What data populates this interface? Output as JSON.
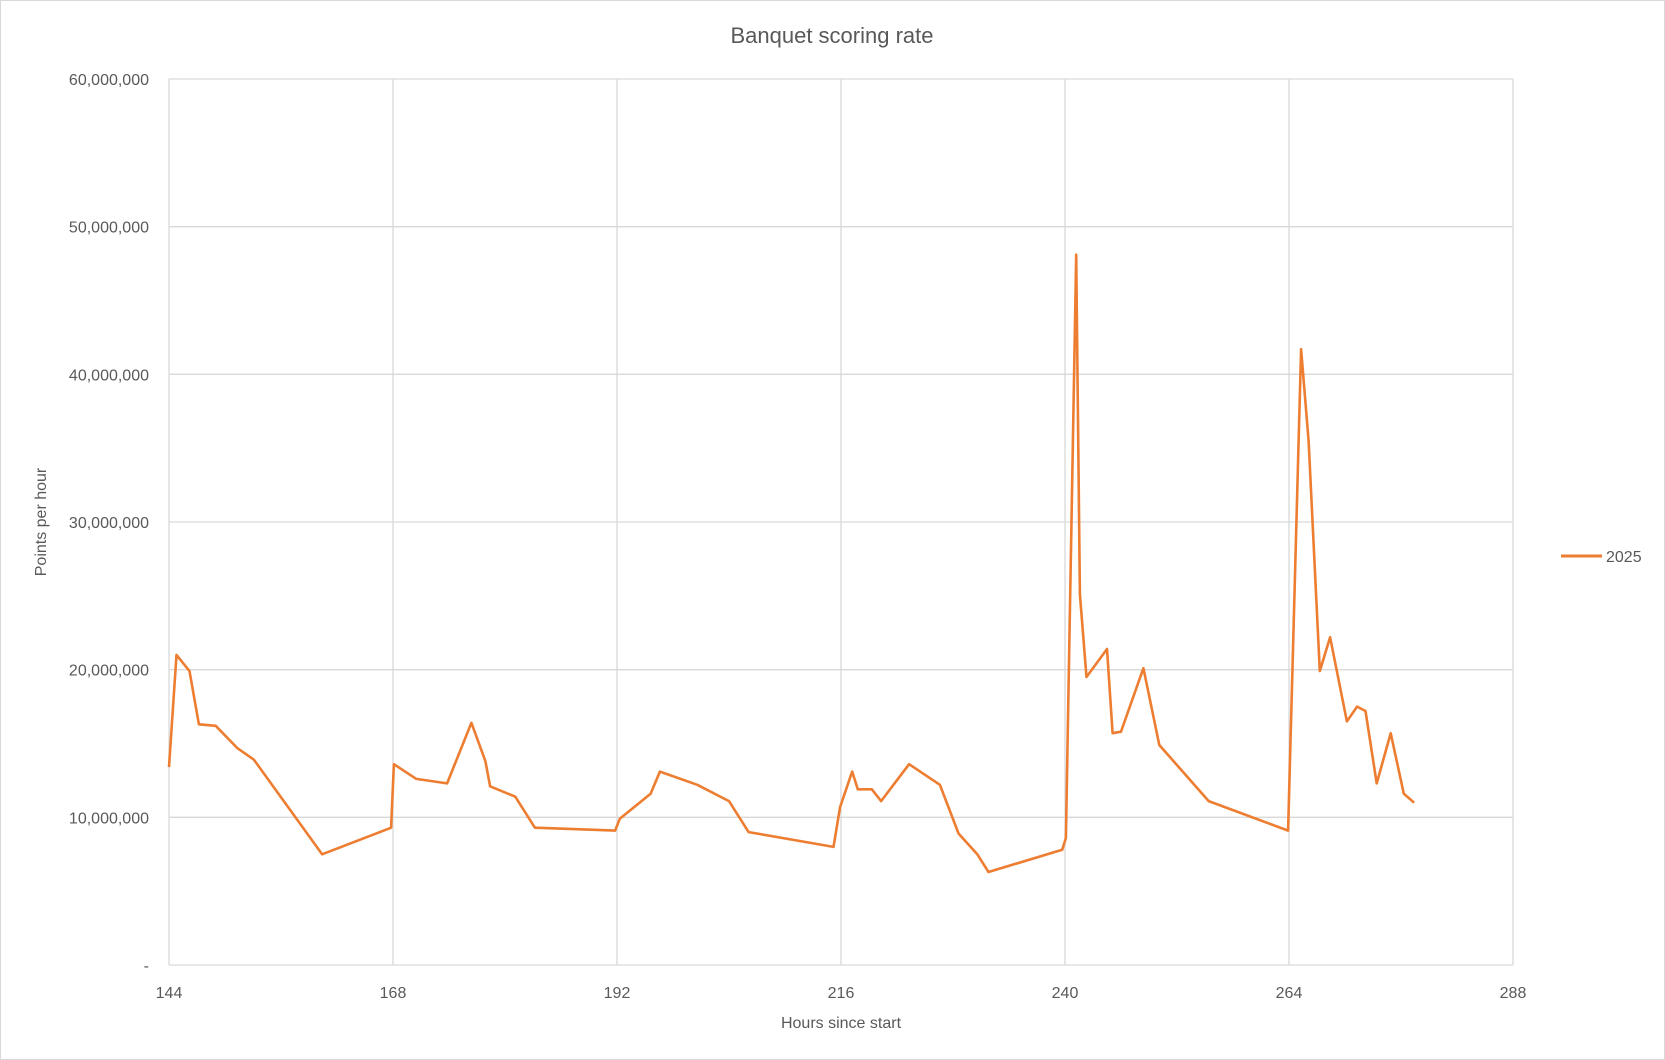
{
  "chart_data": {
    "type": "line",
    "title": "Banquet scoring rate",
    "xlabel": "Hours since start",
    "ylabel": "Points per hour",
    "xlim": [
      144,
      288
    ],
    "ylim": [
      0,
      60000000
    ],
    "x_ticks": [
      144,
      168,
      192,
      216,
      240,
      264,
      288
    ],
    "x_tick_labels": [
      "144",
      "168",
      "192",
      "216",
      "240",
      "264",
      "288"
    ],
    "y_ticks": [
      0,
      10000000,
      20000000,
      30000000,
      40000000,
      50000000,
      60000000
    ],
    "y_tick_labels": [
      "-",
      "10,000,000",
      "20,000,000",
      "30,000,000",
      "40,000,000",
      "50,000,000",
      "60,000,000"
    ],
    "grid": "both-major",
    "legend": "right",
    "series": [
      {
        "name": "2025",
        "color": "#ed7d31",
        "x": [
          144.0,
          144.8,
          146.2,
          147.2,
          149.0,
          151.3,
          153.1,
          160.4,
          167.8,
          168.1,
          170.5,
          173.8,
          176.4,
          177.9,
          178.4,
          181.1,
          183.2,
          191.8,
          192.3,
          195.6,
          196.6,
          200.6,
          204.0,
          206.1,
          215.2,
          215.9,
          217.2,
          217.8,
          219.3,
          220.3,
          223.3,
          226.6,
          228.6,
          230.6,
          231.8,
          239.7,
          240.1,
          241.2,
          241.6,
          242.3,
          244.5,
          245.1,
          246.0,
          248.4,
          250.1,
          255.4,
          263.9,
          265.3,
          266.1,
          267.3,
          268.4,
          270.2,
          271.3,
          272.2,
          273.4,
          274.9,
          276.3,
          277.4
        ],
        "y": [
          13400000,
          21000000,
          19900000,
          16300000,
          16200000,
          14700000,
          13900000,
          7500000,
          9300000,
          13600000,
          12600000,
          12300000,
          16400000,
          13800000,
          12100000,
          11400000,
          9300000,
          9100000,
          9900000,
          11600000,
          13100000,
          12200000,
          11100000,
          9000000,
          8000000,
          10700000,
          13100000,
          11900000,
          11900000,
          11100000,
          13600000,
          12200000,
          8900000,
          7500000,
          6300000,
          7800000,
          8600000,
          48100000,
          25100000,
          19500000,
          21400000,
          15700000,
          15800000,
          20100000,
          14900000,
          11100000,
          9100000,
          41700000,
          35500000,
          19900000,
          22200000,
          16500000,
          17500000,
          17200000,
          12300000,
          15700000,
          11600000,
          11000000
        ]
      }
    ]
  }
}
